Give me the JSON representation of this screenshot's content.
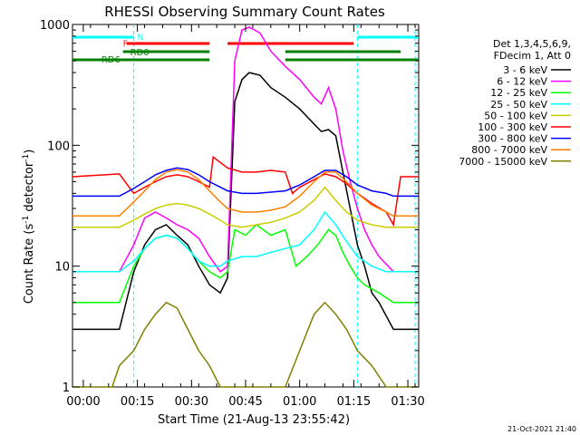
{
  "chart_data": {
    "type": "line",
    "title": "RHESSI Observing Summary Count Rates",
    "xlabel": "Start Time (21-Aug-13 23:55:42)",
    "ylabel": "Count Rate (s",
    "ylabel_sup": "-1",
    "ylabel_rest": " detector",
    "ylabel_sup2": "-1",
    "ylabel_close": ")",
    "y_scale": "log",
    "ylim": [
      1,
      1000
    ],
    "xlim_minutes": [
      -3,
      93
    ],
    "y_tick_labels": [
      "1",
      "10",
      "100",
      "1000"
    ],
    "x_ticks": [
      {
        "label": "00:00",
        "min": 0
      },
      {
        "label": "00:15",
        "min": 15
      },
      {
        "label": "00:30",
        "min": 30
      },
      {
        "label": "00:45",
        "min": 45
      },
      {
        "label": "01:00",
        "min": 60
      },
      {
        "label": "01:15",
        "min": 75
      },
      {
        "label": "01:30",
        "min": 90
      }
    ],
    "legend_header": [
      "Det 1,3,4,5,6,9,",
      "FDecim 1, Att 0"
    ],
    "legend_position": "right",
    "footer_date": "21-Oct-2021 21:40",
    "flag_labels": {
      "night": "N",
      "flare": "F",
      "rd0": "RD0",
      "rd6": "RD6"
    },
    "flags": {
      "night": {
        "color": "#00ffff",
        "intervals": [
          [
            -3,
            14
          ],
          [
            76,
            93
          ]
        ]
      },
      "flare": {
        "color": "#ff0000",
        "intervals": [
          [
            12,
            35
          ],
          [
            40,
            75
          ]
        ]
      },
      "rd0": {
        "color": "#008000",
        "intervals": [
          [
            11,
            35
          ],
          [
            56,
            88
          ]
        ]
      },
      "rd6": {
        "color": "#008000",
        "intervals": [
          [
            -3,
            35
          ],
          [
            56,
            88
          ],
          [
            88,
            93
          ]
        ]
      }
    },
    "night_boundaries_min": [
      14,
      76,
      92
    ],
    "series": [
      {
        "name": "3 - 6 keV",
        "color": "#000000",
        "points": [
          [
            -3,
            3
          ],
          [
            10,
            3
          ],
          [
            14,
            9
          ],
          [
            17,
            15
          ],
          [
            20,
            20
          ],
          [
            23,
            22
          ],
          [
            26,
            18
          ],
          [
            29,
            15
          ],
          [
            32,
            10
          ],
          [
            35,
            7
          ],
          [
            38,
            6
          ],
          [
            40,
            8
          ],
          [
            42,
            230
          ],
          [
            44,
            350
          ],
          [
            46,
            400
          ],
          [
            49,
            380
          ],
          [
            52,
            300
          ],
          [
            56,
            250
          ],
          [
            60,
            200
          ],
          [
            64,
            150
          ],
          [
            66,
            130
          ],
          [
            68,
            135
          ],
          [
            70,
            120
          ],
          [
            72,
            60
          ],
          [
            74,
            30
          ],
          [
            76,
            15
          ],
          [
            78,
            10
          ],
          [
            80,
            6
          ],
          [
            82,
            5
          ],
          [
            86,
            3
          ],
          [
            93,
            3
          ]
        ]
      },
      {
        "name": "6 - 12 keV",
        "color": "#ff00ff",
        "points": [
          [
            -3,
            9
          ],
          [
            10,
            9
          ],
          [
            14,
            15
          ],
          [
            17,
            25
          ],
          [
            20,
            28
          ],
          [
            23,
            25
          ],
          [
            26,
            22
          ],
          [
            29,
            20
          ],
          [
            32,
            17
          ],
          [
            35,
            12
          ],
          [
            38,
            9
          ],
          [
            40,
            10
          ],
          [
            42,
            500
          ],
          [
            44,
            900
          ],
          [
            46,
            950
          ],
          [
            49,
            850
          ],
          [
            52,
            600
          ],
          [
            56,
            450
          ],
          [
            60,
            350
          ],
          [
            64,
            250
          ],
          [
            66,
            220
          ],
          [
            68,
            300
          ],
          [
            70,
            200
          ],
          [
            72,
            90
          ],
          [
            74,
            50
          ],
          [
            76,
            30
          ],
          [
            78,
            20
          ],
          [
            80,
            15
          ],
          [
            82,
            12
          ],
          [
            86,
            9
          ],
          [
            93,
            9
          ]
        ]
      },
      {
        "name": "12 - 25 keV",
        "color": "#00ff00",
        "points": [
          [
            -3,
            5
          ],
          [
            10,
            5
          ],
          [
            14,
            10
          ],
          [
            17,
            14
          ],
          [
            20,
            17
          ],
          [
            23,
            18
          ],
          [
            26,
            17
          ],
          [
            29,
            14
          ],
          [
            32,
            11
          ],
          [
            35,
            9
          ],
          [
            38,
            8
          ],
          [
            40,
            9
          ],
          [
            42,
            20
          ],
          [
            45,
            18
          ],
          [
            48,
            22
          ],
          [
            52,
            18
          ],
          [
            56,
            20
          ],
          [
            59,
            10
          ],
          [
            62,
            12
          ],
          [
            65,
            15
          ],
          [
            68,
            20
          ],
          [
            70,
            18
          ],
          [
            72,
            13
          ],
          [
            74,
            10
          ],
          [
            76,
            8
          ],
          [
            78,
            7
          ],
          [
            82,
            6
          ],
          [
            86,
            5
          ],
          [
            93,
            5
          ]
        ]
      },
      {
        "name": "25 - 50 keV",
        "color": "#00ffff",
        "points": [
          [
            -3,
            9
          ],
          [
            10,
            9
          ],
          [
            14,
            11
          ],
          [
            17,
            14
          ],
          [
            20,
            17
          ],
          [
            23,
            18
          ],
          [
            26,
            17
          ],
          [
            29,
            14
          ],
          [
            32,
            11
          ],
          [
            35,
            10
          ],
          [
            38,
            10
          ],
          [
            40,
            11
          ],
          [
            44,
            12
          ],
          [
            48,
            12
          ],
          [
            52,
            13
          ],
          [
            56,
            14
          ],
          [
            60,
            15
          ],
          [
            64,
            20
          ],
          [
            67,
            28
          ],
          [
            70,
            22
          ],
          [
            73,
            16
          ],
          [
            76,
            12
          ],
          [
            80,
            10
          ],
          [
            84,
            9
          ],
          [
            93,
            9
          ]
        ]
      },
      {
        "name": "50 - 100 keV",
        "color": "#cccc00",
        "points": [
          [
            -3,
            21
          ],
          [
            10,
            21
          ],
          [
            14,
            24
          ],
          [
            17,
            27
          ],
          [
            20,
            30
          ],
          [
            23,
            32
          ],
          [
            26,
            33
          ],
          [
            29,
            32
          ],
          [
            32,
            30
          ],
          [
            35,
            27
          ],
          [
            38,
            24
          ],
          [
            40,
            22
          ],
          [
            44,
            21
          ],
          [
            48,
            22
          ],
          [
            52,
            23
          ],
          [
            56,
            25
          ],
          [
            60,
            28
          ],
          [
            64,
            35
          ],
          [
            67,
            45
          ],
          [
            70,
            35
          ],
          [
            73,
            28
          ],
          [
            76,
            24
          ],
          [
            80,
            22
          ],
          [
            84,
            21
          ],
          [
            93,
            21
          ]
        ]
      },
      {
        "name": "100 - 300 keV",
        "color": "#ff0000",
        "points": [
          [
            -3,
            55
          ],
          [
            10,
            58
          ],
          [
            14,
            40
          ],
          [
            17,
            45
          ],
          [
            20,
            50
          ],
          [
            23,
            55
          ],
          [
            26,
            57
          ],
          [
            29,
            55
          ],
          [
            32,
            50
          ],
          [
            35,
            45
          ],
          [
            36,
            80
          ],
          [
            40,
            65
          ],
          [
            44,
            60
          ],
          [
            48,
            60
          ],
          [
            52,
            62
          ],
          [
            56,
            60
          ],
          [
            58,
            40
          ],
          [
            60,
            45
          ],
          [
            64,
            52
          ],
          [
            67,
            58
          ],
          [
            70,
            55
          ],
          [
            73,
            48
          ],
          [
            76,
            40
          ],
          [
            80,
            33
          ],
          [
            84,
            28
          ],
          [
            86,
            22
          ],
          [
            88,
            55
          ],
          [
            93,
            55
          ]
        ]
      },
      {
        "name": "300 - 800 keV",
        "color": "#0000ff",
        "points": [
          [
            -3,
            38
          ],
          [
            10,
            38
          ],
          [
            14,
            44
          ],
          [
            17,
            50
          ],
          [
            20,
            57
          ],
          [
            23,
            62
          ],
          [
            26,
            65
          ],
          [
            29,
            63
          ],
          [
            32,
            57
          ],
          [
            35,
            50
          ],
          [
            38,
            45
          ],
          [
            40,
            42
          ],
          [
            44,
            40
          ],
          [
            48,
            40
          ],
          [
            52,
            41
          ],
          [
            56,
            42
          ],
          [
            60,
            47
          ],
          [
            64,
            55
          ],
          [
            67,
            62
          ],
          [
            70,
            62
          ],
          [
            73,
            55
          ],
          [
            76,
            47
          ],
          [
            80,
            42
          ],
          [
            84,
            40
          ],
          [
            86,
            38
          ],
          [
            93,
            38
          ]
        ]
      },
      {
        "name": "800 - 7000 keV",
        "color": "#ff8000",
        "points": [
          [
            -3,
            26
          ],
          [
            10,
            26
          ],
          [
            14,
            34
          ],
          [
            17,
            42
          ],
          [
            20,
            52
          ],
          [
            23,
            60
          ],
          [
            26,
            63
          ],
          [
            29,
            60
          ],
          [
            32,
            52
          ],
          [
            35,
            42
          ],
          [
            38,
            34
          ],
          [
            40,
            30
          ],
          [
            44,
            28
          ],
          [
            48,
            28
          ],
          [
            52,
            29
          ],
          [
            56,
            31
          ],
          [
            60,
            38
          ],
          [
            64,
            50
          ],
          [
            67,
            60
          ],
          [
            70,
            60
          ],
          [
            73,
            50
          ],
          [
            76,
            40
          ],
          [
            80,
            32
          ],
          [
            84,
            28
          ],
          [
            86,
            26
          ],
          [
            93,
            26
          ]
        ]
      },
      {
        "name": "7000 - 15000 keV",
        "color": "#808000",
        "points": [
          [
            -3,
            1
          ],
          [
            8,
            1
          ],
          [
            10,
            1.5
          ],
          [
            14,
            2
          ],
          [
            17,
            3
          ],
          [
            20,
            4
          ],
          [
            23,
            5
          ],
          [
            26,
            4.5
          ],
          [
            29,
            3
          ],
          [
            32,
            2
          ],
          [
            35,
            1.5
          ],
          [
            38,
            1
          ],
          [
            56,
            1
          ],
          [
            60,
            2
          ],
          [
            64,
            4
          ],
          [
            67,
            5
          ],
          [
            70,
            4
          ],
          [
            73,
            3
          ],
          [
            76,
            2
          ],
          [
            80,
            1.5
          ],
          [
            84,
            1
          ],
          [
            93,
            1
          ]
        ]
      }
    ]
  }
}
